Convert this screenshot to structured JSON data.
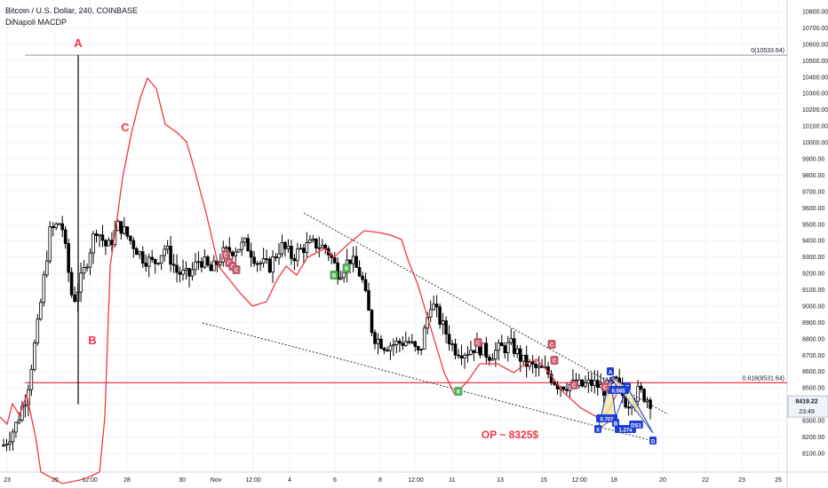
{
  "header": {
    "symbol_line": "Bitcoin / U.S. Dollar, 240, COINBASE",
    "indicator_line": "DiNapoli MACDP"
  },
  "chart_data": {
    "type": "candlestick",
    "title": "Bitcoin / U.S. Dollar, 240, COINBASE",
    "y_ticks": [
      8100,
      8200,
      8300,
      8400,
      8500,
      8600,
      8700,
      8800,
      8900,
      9000,
      9100,
      9200,
      9300,
      9400,
      9500,
      9600,
      9700,
      9800,
      9900,
      10000,
      10100,
      10200,
      10300,
      10400,
      10500,
      10600,
      10700,
      10800
    ],
    "y_tick_labels": [
      "8100.00",
      "8200.00",
      "8300.00",
      "8400.00",
      "8500.00",
      "8600.00",
      "8700.00",
      "8800.00",
      "8900.00",
      "9000.00",
      "9100.00",
      "9200.00",
      "9300.00",
      "9400.00",
      "9500.00",
      "9600.00",
      "9700.00",
      "9800.00",
      "9900.00",
      "10000.00",
      "10100.00",
      "10200.00",
      "10300.00",
      "10400.00",
      "10500.00",
      "10600.00",
      "10700.00",
      "10800.00"
    ],
    "ylim": [
      8080,
      10860
    ],
    "x_tick_labels": [
      "23",
      "25",
      "12:00",
      "28",
      "30",
      "Nov",
      "12:00",
      "4",
      "6",
      "8",
      "12:00",
      "11",
      "13",
      "15",
      "12:00",
      "18",
      "20",
      "22",
      "23",
      "25"
    ],
    "current_price_label": "8419.22",
    "countdown_label": "23:49",
    "current_price": 8419.22,
    "levels": [
      {
        "label": "0.618(8531.64)",
        "value": 8531.64,
        "color": "#f23645"
      },
      {
        "label": "0(10533.64)",
        "value": 10533.64,
        "color": "#9598a1"
      }
    ],
    "annotations": [
      "A",
      "B",
      "C",
      "OP ~ 8325$"
    ],
    "pattern_labels": [
      "A",
      "C",
      "0.565",
      "0.707",
      "1.274",
      "X",
      "B",
      "D",
      "DS1"
    ],
    "signal_markers": [
      "C",
      "C",
      "C",
      "C",
      "C",
      "C",
      "C",
      "C",
      "C",
      "B",
      "B",
      "B"
    ],
    "series": [
      {
        "name": "Candles",
        "type": "candlestick",
        "close_trace": [
          8150,
          8260,
          8460,
          8900,
          9450,
          9520,
          9020,
          9220,
          9480,
          9350,
          9500,
          9400,
          9300,
          9260,
          9360,
          9210,
          9180,
          9290,
          9210,
          9320,
          9350,
          9380,
          9270,
          9240,
          9370,
          9300,
          9360,
          9380,
          9350,
          9200,
          9290,
          9180,
          8820,
          8760,
          8770,
          8790,
          8700,
          9030,
          8880,
          8740,
          8720,
          8760,
          8700,
          8740,
          8760,
          8660,
          8620,
          8600,
          8520,
          8520,
          8510,
          8530,
          8490,
          8540,
          8400,
          8480,
          8419.22
        ]
      },
      {
        "name": "DiNapoli MACDP",
        "type": "line",
        "color": "#f23645"
      }
    ],
    "colors": {
      "up": "#ffffff",
      "down": "#000000",
      "indicator": "#f23645",
      "fib": "#f23645",
      "pattern": "#1e3fd6",
      "pattern_fill": "#f7e7a0"
    }
  }
}
